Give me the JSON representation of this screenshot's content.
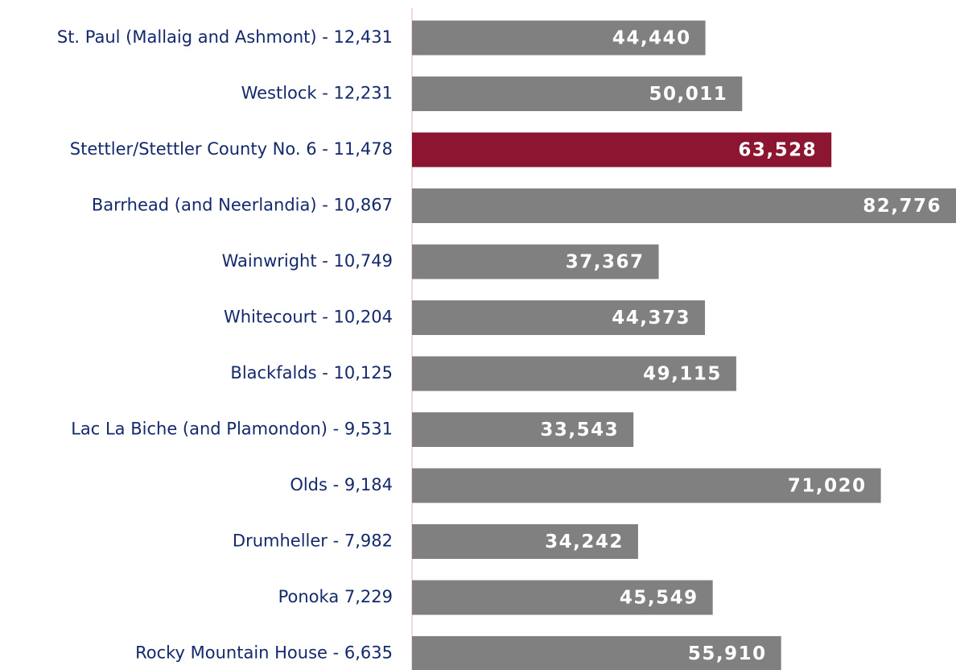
{
  "chart_data": {
    "type": "hbar",
    "categories": [
      "St. Paul (Mallaig and Ashmont) - 12,431",
      "Westlock - 12,231",
      "Stettler/Stettler County No. 6 - 11,478",
      "Barrhead (and Neerlandia) - 10,867",
      "Wainwright - 10,749",
      "Whitecourt - 10,204",
      "Blackfalds - 10,125",
      "Lac La Biche (and Plamondon) - 9,531",
      "Olds - 9,184",
      "Drumheller - 7,982",
      "Ponoka 7,229",
      "Rocky Mountain House - 6,635"
    ],
    "values": [
      44440,
      50011,
      63528,
      82776,
      37367,
      44373,
      49115,
      33543,
      71020,
      34242,
      45549,
      55910
    ],
    "value_labels": [
      "44,440",
      "50,011",
      "63,528",
      "82,776",
      "37,367",
      "44,373",
      "49,115",
      "33,543",
      "71,020",
      "34,242",
      "45,549",
      "55,910"
    ],
    "colors": [
      "#808080",
      "#808080",
      "#8c1631",
      "#808080",
      "#808080",
      "#808080",
      "#808080",
      "#808080",
      "#808080",
      "#808080",
      "#808080",
      "#808080"
    ],
    "xlim": [
      0,
      82400
    ]
  }
}
